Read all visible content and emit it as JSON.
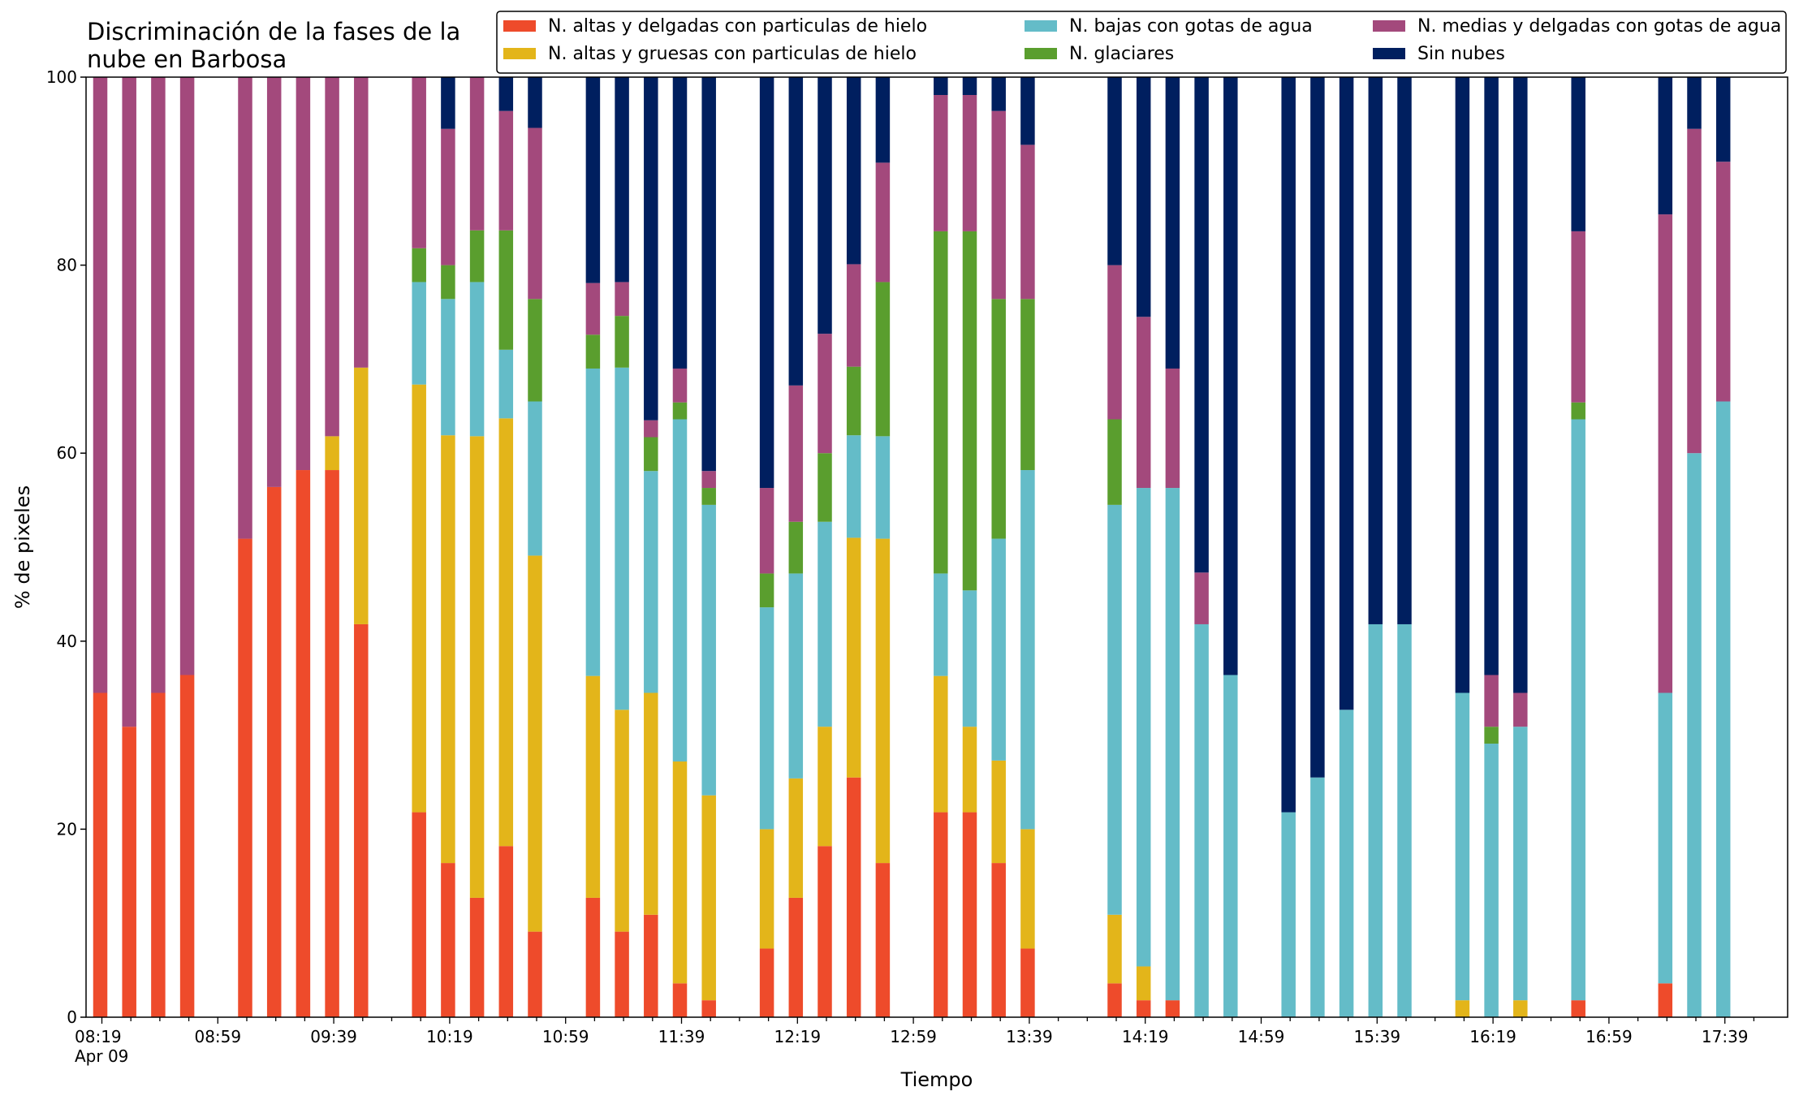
{
  "chart_data": {
    "type": "bar",
    "stacked": true,
    "title_lines": [
      "Discriminación de la fases de la",
      "nube en Barbosa"
    ],
    "xlabel": "Tiempo",
    "ylabel": "% de pixeles",
    "ylim": [
      0,
      100
    ],
    "yticks": [
      "0",
      "20",
      "40",
      "60",
      "80",
      "100"
    ],
    "xtick_labels": [
      "08:19",
      "08:59",
      "09:39",
      "10:19",
      "10:59",
      "11:39",
      "12:19",
      "12:59",
      "13:39",
      "14:19",
      "14:59",
      "15:39",
      "16:19",
      "16:59",
      "17:39"
    ],
    "xtick_sublabel": "Apr 09",
    "legend_position": "top-right",
    "grid": false,
    "x_start": "08:19",
    "slot_minutes": 10,
    "slots": 58,
    "series": [
      {
        "name": "N. altas y delgadas con particulas de hielo",
        "color": "#ee4b2b"
      },
      {
        "name": "N. altas y gruesas con particulas de hielo",
        "color": "#e3b51a"
      },
      {
        "name": "N. bajas con gotas de agua",
        "color": "#64bcc8"
      },
      {
        "name": "N. glaciares",
        "color": "#5a9e2e"
      },
      {
        "name": "N. medias y delgadas con gotas de agua",
        "color": "#a3497c"
      },
      {
        "name": "Sin nubes",
        "color": "#001f5f"
      }
    ],
    "bars": [
      {
        "time": "08:19",
        "values": [
          34.5,
          0,
          0,
          0,
          65.5,
          0
        ]
      },
      {
        "time": "08:29",
        "values": [
          30.9,
          0,
          0,
          0,
          69.1,
          0
        ]
      },
      {
        "time": "08:39",
        "values": [
          34.5,
          0,
          0,
          0,
          65.5,
          0
        ]
      },
      {
        "time": "08:49",
        "values": [
          36.4,
          0,
          0,
          0,
          63.6,
          0
        ]
      },
      {
        "time": "09:09",
        "values": [
          50.9,
          0,
          0,
          0,
          49.1,
          0
        ]
      },
      {
        "time": "09:19",
        "values": [
          56.4,
          0,
          0,
          0,
          43.6,
          0
        ]
      },
      {
        "time": "09:29",
        "values": [
          58.2,
          0,
          0,
          0,
          41.8,
          0
        ]
      },
      {
        "time": "09:39",
        "values": [
          58.2,
          3.6,
          0,
          0,
          38.2,
          0
        ]
      },
      {
        "time": "09:49",
        "values": [
          41.8,
          27.3,
          0,
          0,
          30.9,
          0
        ]
      },
      {
        "time": "10:09",
        "values": [
          21.8,
          45.5,
          10.9,
          3.6,
          18.2,
          0
        ]
      },
      {
        "time": "10:19",
        "values": [
          16.4,
          45.5,
          14.5,
          3.6,
          14.5,
          5.5
        ]
      },
      {
        "time": "10:29",
        "values": [
          12.7,
          49.1,
          16.4,
          5.5,
          16.3,
          0
        ]
      },
      {
        "time": "10:39",
        "values": [
          18.2,
          45.5,
          7.3,
          12.7,
          12.7,
          3.6
        ]
      },
      {
        "time": "10:49",
        "values": [
          9.1,
          40.0,
          16.4,
          10.9,
          18.2,
          5.4
        ]
      },
      {
        "time": "11:09",
        "values": [
          12.7,
          23.6,
          32.7,
          3.6,
          5.5,
          21.9
        ]
      },
      {
        "time": "11:19",
        "values": [
          9.1,
          23.6,
          36.4,
          5.5,
          3.6,
          21.8
        ]
      },
      {
        "time": "11:29",
        "values": [
          10.9,
          23.6,
          23.6,
          3.6,
          1.8,
          36.5
        ]
      },
      {
        "time": "11:39",
        "values": [
          3.6,
          23.6,
          36.4,
          1.8,
          3.6,
          31.0
        ]
      },
      {
        "time": "11:49",
        "values": [
          1.8,
          21.8,
          30.9,
          1.8,
          1.8,
          41.9
        ]
      },
      {
        "time": "12:09",
        "values": [
          7.3,
          12.7,
          23.6,
          3.6,
          9.1,
          43.7
        ]
      },
      {
        "time": "12:19",
        "values": [
          12.7,
          12.7,
          21.8,
          5.5,
          14.5,
          32.8
        ]
      },
      {
        "time": "12:29",
        "values": [
          18.2,
          12.7,
          21.8,
          7.3,
          12.7,
          27.3
        ]
      },
      {
        "time": "12:39",
        "values": [
          25.5,
          25.5,
          10.9,
          7.3,
          10.9,
          19.9
        ]
      },
      {
        "time": "12:49",
        "values": [
          16.4,
          34.5,
          10.9,
          16.4,
          12.7,
          9.1
        ]
      },
      {
        "time": "13:09",
        "values": [
          21.8,
          14.5,
          10.9,
          36.4,
          14.5,
          1.9
        ]
      },
      {
        "time": "13:19",
        "values": [
          21.8,
          9.1,
          14.5,
          38.2,
          14.5,
          1.9
        ]
      },
      {
        "time": "13:29",
        "values": [
          16.4,
          10.9,
          23.6,
          25.5,
          20.0,
          3.6
        ]
      },
      {
        "time": "13:39",
        "values": [
          7.3,
          12.7,
          38.2,
          18.2,
          16.4,
          7.2
        ]
      },
      {
        "time": "14:09",
        "values": [
          3.6,
          7.3,
          43.6,
          9.1,
          16.4,
          20.0
        ]
      },
      {
        "time": "14:19",
        "values": [
          1.8,
          3.6,
          50.9,
          0,
          18.2,
          25.5
        ]
      },
      {
        "time": "14:29",
        "values": [
          1.8,
          0,
          54.5,
          0,
          12.7,
          31.0
        ]
      },
      {
        "time": "14:39",
        "values": [
          0,
          0,
          41.8,
          0,
          5.5,
          52.7
        ]
      },
      {
        "time": "14:49",
        "values": [
          0,
          0,
          36.4,
          0,
          0,
          63.6
        ]
      },
      {
        "time": "15:09",
        "values": [
          0,
          0,
          21.8,
          0,
          0,
          78.2
        ]
      },
      {
        "time": "15:19",
        "values": [
          0,
          0,
          25.5,
          0,
          0,
          74.5
        ]
      },
      {
        "time": "15:29",
        "values": [
          0,
          0,
          32.7,
          0,
          0,
          67.3
        ]
      },
      {
        "time": "15:39",
        "values": [
          0,
          0,
          41.8,
          0,
          0,
          58.2
        ]
      },
      {
        "time": "15:49",
        "values": [
          0,
          0,
          41.8,
          0,
          0,
          58.2
        ]
      },
      {
        "time": "16:09",
        "values": [
          0,
          1.8,
          32.7,
          0,
          0,
          65.5
        ]
      },
      {
        "time": "16:19",
        "values": [
          0,
          0,
          29.1,
          1.8,
          5.5,
          63.6
        ]
      },
      {
        "time": "16:29",
        "values": [
          0,
          1.8,
          29.1,
          0,
          3.6,
          65.5
        ]
      },
      {
        "time": "16:49",
        "values": [
          1.8,
          0,
          61.8,
          1.8,
          18.2,
          16.4
        ]
      },
      {
        "time": "17:19",
        "values": [
          3.6,
          0,
          30.9,
          0,
          50.9,
          14.6
        ]
      },
      {
        "time": "17:29",
        "values": [
          0,
          0,
          60.0,
          0,
          34.5,
          5.5
        ]
      },
      {
        "time": "17:39",
        "values": [
          0,
          0,
          65.5,
          0,
          25.5,
          9.0
        ]
      }
    ]
  }
}
